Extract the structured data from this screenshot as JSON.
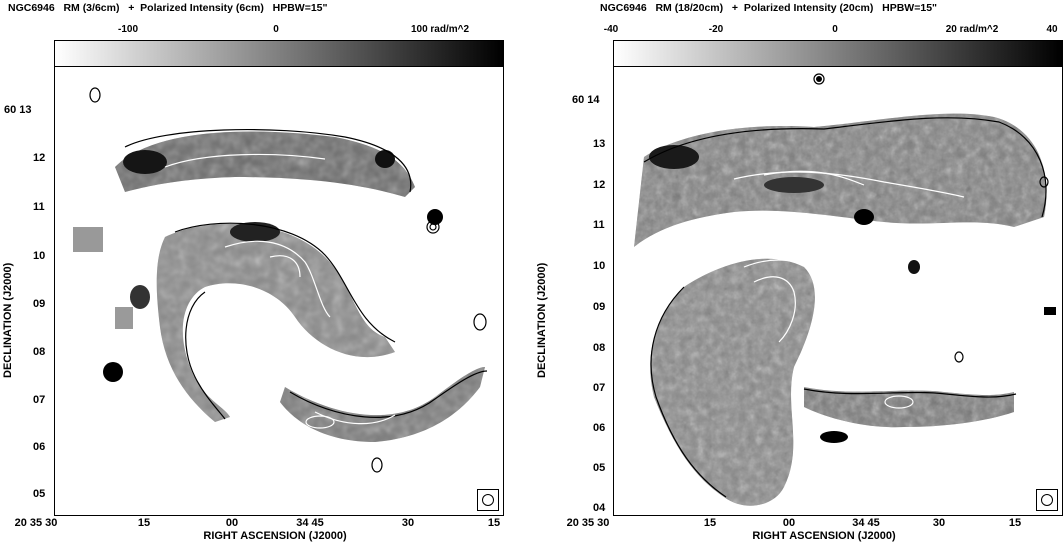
{
  "panels": [
    {
      "id": "left",
      "title": "NGC6946   RM (3/6cm)   +  Polarized Intensity (6cm)   HPBW=15\"",
      "colorbar": {
        "ticks": [
          "-100",
          "0",
          "100 rad/m^2"
        ],
        "range": [
          -150,
          160
        ]
      },
      "y_ticks": [
        "60 13",
        "12",
        "11",
        "10",
        "09",
        "08",
        "07",
        "06",
        "05"
      ],
      "x_ticks": [
        "20 35 30",
        "15",
        "00",
        "34 45",
        "30",
        "15"
      ],
      "xlabel": "RIGHT ASCENSION (J2000)",
      "ylabel": "DECLINATION (J2000)"
    },
    {
      "id": "right",
      "title": "NGC6946   RM (18/20cm)   +  Polarized Intensity (20cm)   HPBW=15\"",
      "colorbar": {
        "ticks": [
          "-40",
          "-20",
          "0",
          "20 rad/m^2",
          "40"
        ],
        "range": [
          -40,
          40
        ]
      },
      "y_ticks": [
        "60 14",
        "13",
        "12",
        "11",
        "10",
        "09",
        "08",
        "07",
        "06",
        "05",
        "04"
      ],
      "x_ticks": [
        "20 35 30",
        "15",
        "00",
        "34 45",
        "30",
        "15"
      ],
      "xlabel": "RIGHT ASCENSION (J2000)",
      "ylabel": "DECLINATION (J2000)"
    }
  ],
  "colors": {
    "colorbar_low": "#ffffff",
    "colorbar_high": "#000000",
    "contour_dark": "#000000",
    "contour_light": "#ffffff"
  }
}
